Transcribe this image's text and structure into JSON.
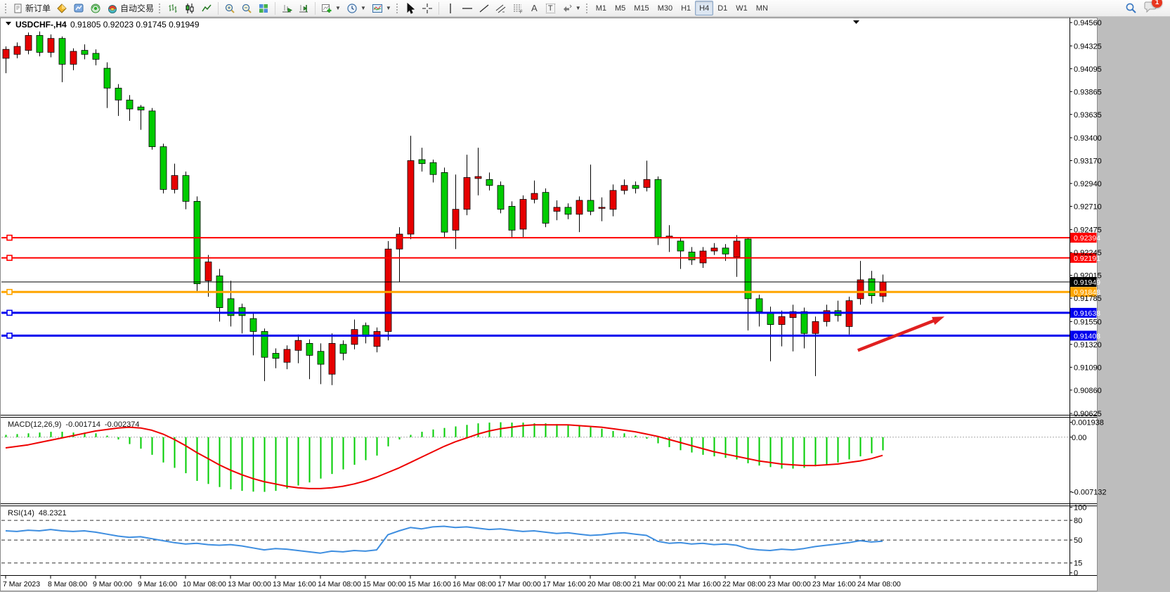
{
  "toolbar": {
    "new_order_label": "新订单",
    "auto_trading_label": "自动交易",
    "icon_glyphs": {
      "text_tool": "A",
      "text_label_tool": "T"
    },
    "timeframes": [
      {
        "label": "M1"
      },
      {
        "label": "M5"
      },
      {
        "label": "M15"
      },
      {
        "label": "M30"
      },
      {
        "label": "H1"
      },
      {
        "label": "H4",
        "active": true
      },
      {
        "label": "D1"
      },
      {
        "label": "W1"
      },
      {
        "label": "MN"
      }
    ],
    "notification_badge": "1"
  },
  "chart_window": {
    "symbol_period": "USDCHF-,H4",
    "ohlc_text": "0.91805 0.92023 0.91745 0.91949"
  },
  "chart_data": {
    "type": "candlestick",
    "symbol": "USDCHF-",
    "period": "H4",
    "last_bar": {
      "open": 0.91805,
      "high": 0.92023,
      "low": 0.91745,
      "close": 0.91949
    },
    "colors": {
      "up_candle": "#e60000",
      "down_candle": "#00cc00",
      "wick": "#000000",
      "macd_histogram": "#00cc00",
      "macd_signal": "#ee0000",
      "rsi_line": "#3e8ee0",
      "arrow": "#e02020",
      "current_price_badge": "#000000"
    },
    "ylim": [
      0.90611,
      0.9461
    ],
    "price_axis_ticks": [
      "0.94560",
      "0.94325",
      "0.94095",
      "0.93865",
      "0.93635",
      "0.93400",
      "0.93170",
      "0.92940",
      "0.92710",
      "0.92475",
      "0.92245",
      "0.92015",
      "0.91785",
      "0.91550",
      "0.91320",
      "0.91090",
      "0.90860",
      "0.90625"
    ],
    "time_labels": [
      "7 Mar 2023",
      "8 Mar 08:00",
      "9 Mar 00:00",
      "9 Mar 16:00",
      "10 Mar 08:00",
      "13 Mar 00:00",
      "13 Mar 16:00",
      "14 Mar 08:00",
      "15 Mar 00:00",
      "15 Mar 16:00",
      "16 Mar 08:00",
      "17 Mar 00:00",
      "17 Mar 16:00",
      "20 Mar 08:00",
      "21 Mar 00:00",
      "21 Mar 16:00",
      "22 Mar 08:00",
      "23 Mar 00:00",
      "23 Mar 16:00",
      "24 Mar 08:00"
    ],
    "bars_per_time_label": 4,
    "horizontal_lines": [
      {
        "value": 0.92394,
        "label": "0.92394",
        "color": "#ff0000",
        "width": 2,
        "handle": true
      },
      {
        "value": 0.92191,
        "label": "0.92191",
        "color": "#ff0000",
        "width": 2,
        "handle": true
      },
      {
        "value": 0.91949,
        "label": "0.91949",
        "color": "#000000",
        "width": 1,
        "handle": false
      },
      {
        "value": 0.91848,
        "label": "0.91848",
        "color": "#ffa500",
        "width": 3,
        "handle": true
      },
      {
        "value": 0.91638,
        "label": "0.91638",
        "color": "#0000ee",
        "width": 3,
        "handle": true
      },
      {
        "value": 0.91408,
        "label": "0.91408",
        "color": "#0000ee",
        "width": 3,
        "handle": true
      }
    ],
    "arrow_annotation": {
      "from": {
        "bar": 75.8,
        "price": 0.9126
      },
      "to": {
        "bar": 83.5,
        "price": 0.916
      }
    },
    "candles": [
      [
        0.942,
        0.9432,
        0.9405,
        0.9429
      ],
      [
        0.9424,
        0.9436,
        0.942,
        0.9432
      ],
      [
        0.9428,
        0.9446,
        0.9424,
        0.9443
      ],
      [
        0.9443,
        0.9447,
        0.9422,
        0.9426
      ],
      [
        0.9426,
        0.9444,
        0.9421,
        0.944
      ],
      [
        0.944,
        0.9442,
        0.9396,
        0.9414
      ],
      [
        0.9414,
        0.943,
        0.9408,
        0.9427
      ],
      [
        0.9428,
        0.9434,
        0.9419,
        0.9424
      ],
      [
        0.9425,
        0.9429,
        0.9413,
        0.9419
      ],
      [
        0.941,
        0.9416,
        0.937,
        0.939
      ],
      [
        0.939,
        0.9394,
        0.9362,
        0.9378
      ],
      [
        0.9378,
        0.9383,
        0.9357,
        0.9369
      ],
      [
        0.9371,
        0.9373,
        0.9348,
        0.9368
      ],
      [
        0.9367,
        0.937,
        0.9328,
        0.9331
      ],
      [
        0.9331,
        0.9334,
        0.9284,
        0.9288
      ],
      [
        0.9288,
        0.9314,
        0.9284,
        0.9302
      ],
      [
        0.9302,
        0.9306,
        0.9268,
        0.9276
      ],
      [
        0.9276,
        0.9281,
        0.9185,
        0.9193
      ],
      [
        0.9196,
        0.9222,
        0.918,
        0.9215
      ],
      [
        0.9201,
        0.9208,
        0.9155,
        0.9169
      ],
      [
        0.9178,
        0.9196,
        0.915,
        0.9161
      ],
      [
        0.9169,
        0.9173,
        0.9143,
        0.9161
      ],
      [
        0.9158,
        0.9163,
        0.9121,
        0.9145
      ],
      [
        0.9145,
        0.9148,
        0.9095,
        0.9119
      ],
      [
        0.9123,
        0.9128,
        0.9108,
        0.9118
      ],
      [
        0.9114,
        0.9131,
        0.9107,
        0.9127
      ],
      [
        0.9126,
        0.9142,
        0.9113,
        0.9136
      ],
      [
        0.9133,
        0.9137,
        0.9097,
        0.9121
      ],
      [
        0.9125,
        0.9133,
        0.9092,
        0.9112
      ],
      [
        0.9102,
        0.9143,
        0.9091,
        0.9133
      ],
      [
        0.9132,
        0.9136,
        0.9116,
        0.9123
      ],
      [
        0.9132,
        0.9157,
        0.9127,
        0.9147
      ],
      [
        0.9151,
        0.9154,
        0.9133,
        0.914
      ],
      [
        0.913,
        0.9149,
        0.9124,
        0.9145
      ],
      [
        0.9145,
        0.9236,
        0.9136,
        0.9228
      ],
      [
        0.9228,
        0.925,
        0.9195,
        0.9243
      ],
      [
        0.9243,
        0.9342,
        0.9238,
        0.9317
      ],
      [
        0.9318,
        0.933,
        0.9306,
        0.9314
      ],
      [
        0.9315,
        0.9318,
        0.9295,
        0.9303
      ],
      [
        0.9305,
        0.931,
        0.924,
        0.9245
      ],
      [
        0.9247,
        0.9303,
        0.9228,
        0.9268
      ],
      [
        0.9268,
        0.9323,
        0.9262,
        0.93
      ],
      [
        0.9299,
        0.933,
        0.9282,
        0.9301
      ],
      [
        0.9298,
        0.9305,
        0.9287,
        0.9292
      ],
      [
        0.9292,
        0.9296,
        0.9264,
        0.9268
      ],
      [
        0.9271,
        0.9276,
        0.9239,
        0.9247
      ],
      [
        0.9248,
        0.9282,
        0.924,
        0.9278
      ],
      [
        0.9278,
        0.9297,
        0.9274,
        0.9284
      ],
      [
        0.9285,
        0.9289,
        0.925,
        0.9254
      ],
      [
        0.9266,
        0.9277,
        0.9257,
        0.927
      ],
      [
        0.927,
        0.9274,
        0.9258,
        0.9263
      ],
      [
        0.9263,
        0.9281,
        0.9245,
        0.9277
      ],
      [
        0.9277,
        0.9313,
        0.9262,
        0.9266
      ],
      [
        0.9269,
        0.928,
        0.9256,
        0.927
      ],
      [
        0.9268,
        0.9293,
        0.9261,
        0.9287
      ],
      [
        0.9287,
        0.9298,
        0.9283,
        0.9292
      ],
      [
        0.9292,
        0.9296,
        0.9284,
        0.9289
      ],
      [
        0.929,
        0.9317,
        0.9286,
        0.9298
      ],
      [
        0.9298,
        0.9301,
        0.9232,
        0.924
      ],
      [
        0.9239,
        0.9252,
        0.9225,
        0.9241
      ],
      [
        0.9236,
        0.924,
        0.9208,
        0.9226
      ],
      [
        0.9225,
        0.923,
        0.9212,
        0.9217
      ],
      [
        0.9214,
        0.923,
        0.9209,
        0.9226
      ],
      [
        0.9226,
        0.9234,
        0.9222,
        0.9229
      ],
      [
        0.9229,
        0.9233,
        0.9216,
        0.9223
      ],
      [
        0.922,
        0.9242,
        0.92,
        0.9236
      ],
      [
        0.9238,
        0.924,
        0.9146,
        0.9178
      ],
      [
        0.9178,
        0.9182,
        0.915,
        0.9165
      ],
      [
        0.9164,
        0.917,
        0.9115,
        0.9152
      ],
      [
        0.9152,
        0.9166,
        0.913,
        0.916
      ],
      [
        0.9159,
        0.9172,
        0.9125,
        0.9165
      ],
      [
        0.9165,
        0.9169,
        0.9128,
        0.9143
      ],
      [
        0.9143,
        0.916,
        0.91,
        0.9155
      ],
      [
        0.9155,
        0.9172,
        0.915,
        0.9166
      ],
      [
        0.9166,
        0.9176,
        0.9155,
        0.9161
      ],
      [
        0.915,
        0.918,
        0.9142,
        0.9176
      ],
      [
        0.9178,
        0.9216,
        0.9172,
        0.9197
      ],
      [
        0.9198,
        0.9206,
        0.9173,
        0.9181
      ],
      [
        0.91805,
        0.92023,
        0.91745,
        0.91949
      ]
    ],
    "indicators": {
      "macd": {
        "label": "MACD(12,26,9)",
        "value_text": "-0.001714",
        "signal_text": "-0.002374",
        "axis_ticks": [
          "0.001938",
          "0.00",
          "-0.007132"
        ],
        "ylim": [
          -0.008636,
          0.002545
        ],
        "histogram": [
          0.0003,
          0.0004,
          0.0005,
          0.0006,
          0.0007,
          0.0007,
          0.0006,
          0.0006,
          0.0005,
          0.0002,
          -0.0003,
          -0.0009,
          -0.0015,
          -0.0023,
          -0.0033,
          -0.004,
          -0.0047,
          -0.0057,
          -0.0061,
          -0.0065,
          -0.0068,
          -0.007,
          -0.0071,
          -0.00713,
          -0.007,
          -0.0067,
          -0.0063,
          -0.0059,
          -0.0054,
          -0.0048,
          -0.0042,
          -0.0036,
          -0.003,
          -0.0024,
          -0.0012,
          -0.0003,
          0.0003,
          0.0007,
          0.001,
          0.0012,
          0.0014,
          0.0016,
          0.0018,
          0.0019,
          0.00194,
          0.0019,
          0.0019,
          0.0018,
          0.0018,
          0.0017,
          0.0016,
          0.0015,
          0.0013,
          0.0011,
          0.0008,
          0.0005,
          0.0002,
          -0.0002,
          -0.0008,
          -0.0013,
          -0.0017,
          -0.002,
          -0.0023,
          -0.0025,
          -0.0027,
          -0.0029,
          -0.0034,
          -0.0037,
          -0.0039,
          -0.0041,
          -0.0041,
          -0.004,
          -0.0038,
          -0.0036,
          -0.0033,
          -0.0029,
          -0.0025,
          -0.0021,
          -0.001714
        ],
        "signal": [
          -0.0014,
          -0.0012,
          -0.001,
          -0.0007,
          -0.0004,
          -0.0001,
          0.0002,
          0.0005,
          0.0008,
          0.001,
          0.0012,
          0.0013,
          0.0012,
          0.0009,
          0.0004,
          -0.0003,
          -0.0011,
          -0.002,
          -0.0028,
          -0.0036,
          -0.0043,
          -0.0049,
          -0.0054,
          -0.0058,
          -0.0061,
          -0.0064,
          -0.0066,
          -0.0067,
          -0.0067,
          -0.0066,
          -0.0064,
          -0.0061,
          -0.0057,
          -0.0052,
          -0.0046,
          -0.004,
          -0.0033,
          -0.0026,
          -0.0019,
          -0.0012,
          -0.0006,
          -0.0001,
          0.0004,
          0.0008,
          0.0011,
          0.0013,
          0.0015,
          0.0016,
          0.0016,
          0.0016,
          0.0016,
          0.0015,
          0.0014,
          0.0013,
          0.0011,
          0.0009,
          0.0007,
          0.0004,
          0.0001,
          -0.0003,
          -0.0007,
          -0.0011,
          -0.0015,
          -0.0019,
          -0.0022,
          -0.0025,
          -0.0028,
          -0.0031,
          -0.0033,
          -0.0035,
          -0.0036,
          -0.0037,
          -0.0037,
          -0.0036,
          -0.0035,
          -0.0033,
          -0.0031,
          -0.0028,
          -0.002374
        ]
      },
      "rsi": {
        "label": "RSI(14)",
        "value_text": "48.2321",
        "levels": [
          80,
          50,
          15
        ],
        "axis_ticks": [
          "100",
          "80",
          "50",
          "15",
          "0"
        ],
        "ylim": [
          -3.5,
          101.5
        ],
        "values": [
          64,
          63,
          65,
          64,
          66,
          64,
          63,
          64,
          62,
          59,
          56,
          54,
          55,
          52,
          49,
          46,
          44,
          45,
          43,
          42,
          43,
          41,
          38,
          35,
          37,
          36,
          34,
          32,
          30,
          33,
          32,
          34,
          33,
          35,
          58,
          64,
          69,
          67,
          70,
          71,
          69,
          70,
          68,
          66,
          67,
          65,
          63,
          64,
          62,
          60,
          61,
          59,
          57,
          58,
          60,
          61,
          59,
          57,
          48,
          45,
          46,
          44,
          45,
          43,
          44,
          42,
          37,
          35,
          34,
          36,
          35,
          37,
          40,
          42,
          44,
          46,
          49,
          47,
          48.23
        ]
      }
    }
  }
}
